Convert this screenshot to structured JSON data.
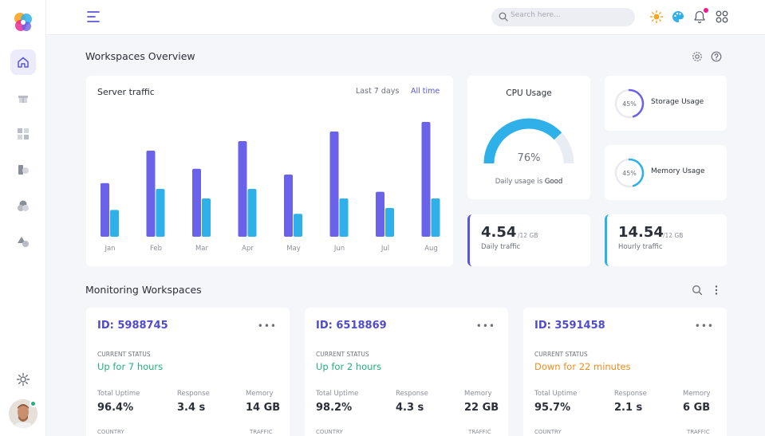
{
  "search": {
    "placeholder": "Search here..."
  },
  "overview": {
    "title": "Workspaces Overview"
  },
  "server_traffic": {
    "title": "Server traffic",
    "tabs": [
      "Last 7 days",
      "All time"
    ],
    "active_tab": "All time"
  },
  "chart_data": {
    "type": "bar",
    "title": "Server traffic",
    "categories": [
      "Jan",
      "Feb",
      "Mar",
      "Apr",
      "May",
      "Jun",
      "Jul",
      "Aug"
    ],
    "series": [
      {
        "values": [
          56,
          90,
          71,
          100,
          65,
          110,
          47,
          120
        ],
        "color": "#6a63e9"
      },
      {
        "values": [
          28,
          50,
          40,
          50,
          24,
          40,
          30,
          40
        ],
        "color": "#2fb0e9"
      }
    ],
    "ylim": [
      0,
      125
    ],
    "grid": false
  },
  "cpu": {
    "title": "CPU Usage",
    "value": "76%",
    "percent": 76,
    "note_prefix": "Daily usage is",
    "note_status": "Good"
  },
  "storage": {
    "label": "Storage Usage",
    "pct_text": "45%",
    "percent": 45
  },
  "memory": {
    "label": "Memory Usage",
    "pct_text": "45%",
    "percent": 45
  },
  "daily": {
    "value": "4.54",
    "unit": "/12 GB",
    "label": "Daily traffic"
  },
  "hourly": {
    "value": "14.54",
    "unit": "/12 GB",
    "label": "Hourly traffic"
  },
  "monitoring": {
    "title": "Monitoring Workspaces",
    "status_label": "CURRENT STATUS",
    "metric_labels": [
      "Total Uptime",
      "Response",
      "Memory"
    ],
    "footer_labels": [
      "COUNTRY",
      "TRAFFIC"
    ],
    "workspaces": [
      {
        "id": "ID: 5988745",
        "status": "Up for 7 hours",
        "uptime": "96.4%",
        "response": "3.4 s",
        "memory": "14 GB"
      },
      {
        "id": "ID: 6518869",
        "status": "Up for 2 hours",
        "uptime": "98.2%",
        "response": "4.3 s",
        "memory": "22 GB"
      },
      {
        "id": "ID: 3591458",
        "status": "Down for 22 minutes",
        "uptime": "95.7%",
        "response": "2.1 s",
        "memory": "6 GB"
      }
    ]
  },
  "colors": {
    "primary": "#5b57d7",
    "accent": "#2fb0e9",
    "success": "#22b07d",
    "warning": "#f28c1b"
  },
  "icons": [
    "app-logo",
    "home-icon",
    "gift-icon",
    "grid-icon",
    "files-icon",
    "circles-icon",
    "shapes-icon",
    "settings-icon",
    "menu-icon",
    "search-icon",
    "sun-icon",
    "palette-icon",
    "bell-icon",
    "apps-icon",
    "gear-icon",
    "help-icon",
    "more-icon"
  ]
}
